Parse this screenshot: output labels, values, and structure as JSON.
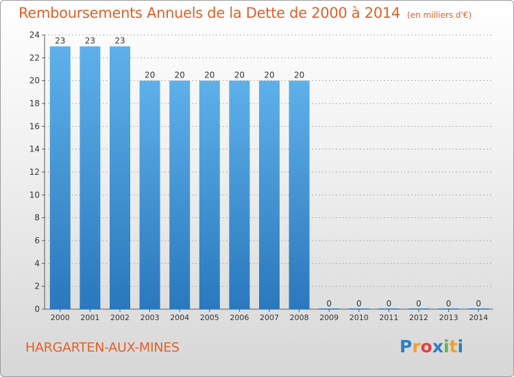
{
  "header": {
    "title": "Remboursements Annuels de la Dette de 2000 à 2014",
    "unit": "(en milliers d'€)"
  },
  "footer": {
    "commune": "HARGARTEN-AUX-MINES",
    "logo_text": "Proxiti"
  },
  "colors": {
    "bar_top": "#5eb0ea",
    "bar_bottom": "#2a78bd",
    "title": "#e0602a",
    "grid": "#b0b0b0"
  },
  "chart_data": {
    "type": "bar",
    "title": "Remboursements Annuels de la Dette de 2000 à 2014",
    "xlabel": "",
    "ylabel": "",
    "categories": [
      "2000",
      "2001",
      "2002",
      "2003",
      "2004",
      "2005",
      "2006",
      "2007",
      "2008",
      "2009",
      "2010",
      "2011",
      "2012",
      "2013",
      "2014"
    ],
    "values": [
      23,
      23,
      23,
      20,
      20,
      20,
      20,
      20,
      20,
      0,
      0,
      0,
      0,
      0,
      0
    ],
    "ylim": [
      0,
      24
    ],
    "yticks": [
      0,
      2,
      4,
      6,
      8,
      10,
      12,
      14,
      16,
      18,
      20,
      22,
      24
    ],
    "grid": true,
    "legend": "none"
  }
}
